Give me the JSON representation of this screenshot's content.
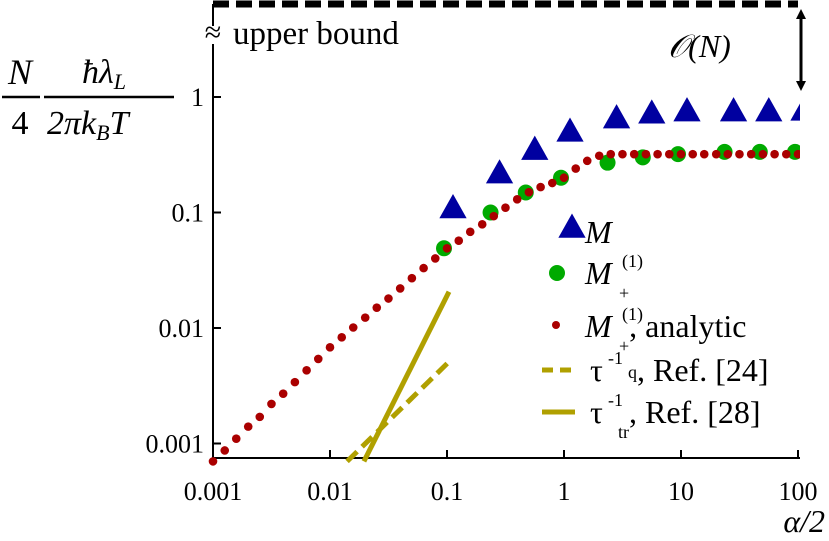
{
  "chart_data": {
    "type": "scatter",
    "xlabel": "α/2",
    "ylabel": {
      "frac1_num": "N",
      "frac1_den": "4",
      "frac2_num": "ħλ",
      "frac2_num_sub": "L",
      "frac2_den_a": "2πk",
      "frac2_den_sub": "B",
      "frac2_den_b": "T"
    },
    "xscale": "log",
    "yscale": "log",
    "xlim": [
      0.001,
      100
    ],
    "ylim": [
      0.00078,
      1
    ],
    "x_ticks": [
      "0.001",
      "0.01",
      "0.1",
      "1",
      "10",
      "100"
    ],
    "y_ticks": [
      "0.001",
      "0.01",
      "0.1",
      "1"
    ],
    "x_tick_values": [
      0.001,
      0.01,
      0.1,
      1,
      10,
      100
    ],
    "y_tick_values": [
      0.001,
      0.01,
      0.1,
      1
    ],
    "grid": false,
    "legend_placement": "bottom-right",
    "annotations": {
      "upper_bound": "upper bound",
      "axis_break": "≈",
      "order": "𝒪(N)"
    },
    "series": [
      {
        "name": "M",
        "legend_main": "M",
        "legend_sup": "",
        "legend_sub": "",
        "legend_rest": "",
        "marker": "triangle",
        "color": "#0000a0",
        "x": [
          0.1,
          0.25,
          0.5,
          1,
          2.5,
          5,
          10,
          25,
          50,
          100
        ],
        "y": [
          0.1,
          0.2,
          0.32,
          0.46,
          0.6,
          0.66,
          0.69,
          0.69,
          0.69,
          0.7
        ]
      },
      {
        "name": "M+(1)",
        "legend_main": "M",
        "legend_sup": "(1)",
        "legend_sub": "+",
        "legend_rest": "",
        "marker": "circle",
        "color": "#00aa00",
        "x": [
          0.1,
          0.25,
          0.5,
          1,
          2.5,
          5,
          10,
          25,
          50,
          100
        ],
        "y": [
          0.049,
          0.1,
          0.149,
          0.2,
          0.27,
          0.3,
          0.32,
          0.335,
          0.335,
          0.335
        ]
      },
      {
        "name": "M+(1), analytic",
        "legend_main": "M",
        "legend_sup": "(1)",
        "legend_sub": "+",
        "legend_rest": ", analytic",
        "marker": "dot",
        "color": "#aa0000",
        "x": [
          0.001,
          0.00126,
          0.00158,
          0.002,
          0.00251,
          0.00316,
          0.00398,
          0.00501,
          0.00631,
          0.00794,
          0.01,
          0.0126,
          0.0158,
          0.02,
          0.0251,
          0.0316,
          0.0398,
          0.0501,
          0.0631,
          0.0794,
          0.1,
          0.126,
          0.158,
          0.2,
          0.251,
          0.316,
          0.398,
          0.501,
          0.631,
          0.794,
          1,
          1.26,
          1.58,
          2,
          2.51,
          3.16,
          3.98,
          5.01,
          6.31,
          7.94,
          10,
          12.6,
          15.8,
          20,
          25.1,
          31.6,
          39.8,
          50.1,
          63.1,
          79.4,
          100
        ],
        "y": [
          0.0007,
          0.00087,
          0.0011,
          0.0014,
          0.0017,
          0.0022,
          0.0027,
          0.0034,
          0.0043,
          0.0054,
          0.0068,
          0.0083,
          0.0101,
          0.0123,
          0.015,
          0.018,
          0.022,
          0.027,
          0.033,
          0.04,
          0.049,
          0.057,
          0.068,
          0.079,
          0.093,
          0.11,
          0.13,
          0.15,
          0.166,
          0.18,
          0.2,
          0.24,
          0.28,
          0.31,
          0.32,
          0.32,
          0.32,
          0.32,
          0.32,
          0.32,
          0.32,
          0.32,
          0.32,
          0.32,
          0.32,
          0.32,
          0.32,
          0.32,
          0.32,
          0.32,
          0.32
        ]
      },
      {
        "name": "τ-1q, Ref. [24]",
        "legend_main": "τ",
        "legend_sup": "-1",
        "legend_sub": "q",
        "legend_rest": ", Ref. [24]",
        "marker": "dashed-line",
        "color": "#b0a000",
        "x": [
          0.014,
          0.108
        ],
        "y": [
          0.0007,
          0.0053
        ]
      },
      {
        "name": "τ-1tr, Ref. [28]",
        "legend_main": "τ",
        "legend_sup": "-1",
        "legend_sub": "tr",
        "legend_rest": ", Ref. [28]",
        "marker": "solid-line",
        "color": "#b0a000",
        "x": [
          0.0195,
          0.104
        ],
        "y": [
          0.0007,
          0.0206
        ]
      }
    ]
  }
}
